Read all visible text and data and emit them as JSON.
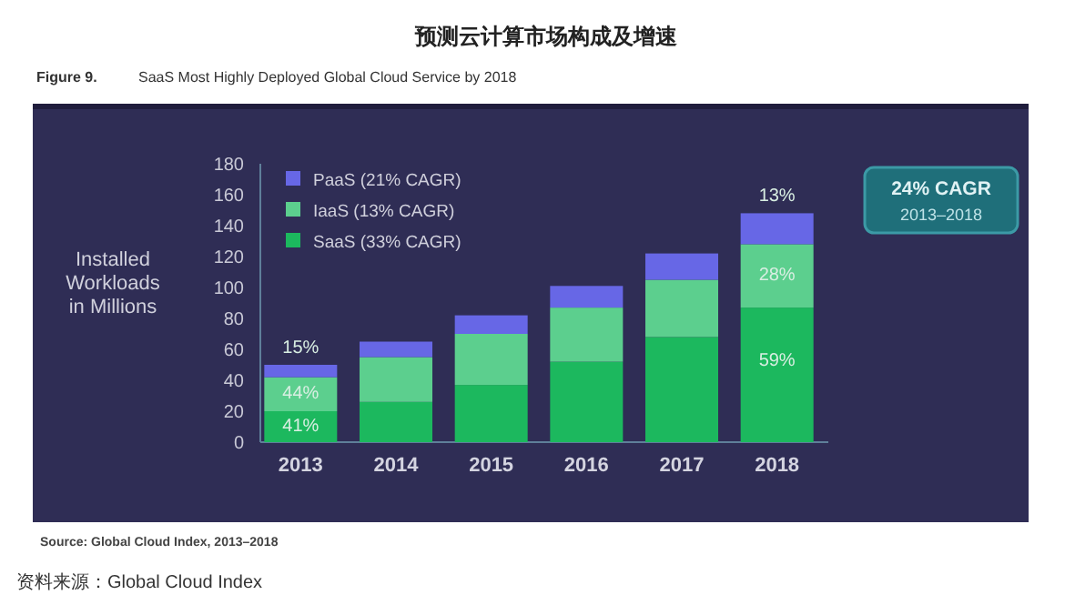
{
  "chart_data": {
    "type": "bar",
    "title": "预测云计算市场构成及增速",
    "subtitle": "SaaS Most Highly Deployed Global Cloud Service by 2018",
    "ylabel": "Installed Workloads in Millions",
    "categories": [
      "2013",
      "2014",
      "2015",
      "2016",
      "2017",
      "2018"
    ],
    "stacked": true,
    "series": [
      {
        "name": "SaaS (33% CAGR)",
        "color": "#1cb85e",
        "values": [
          20,
          26,
          37,
          52,
          68,
          87
        ]
      },
      {
        "name": "IaaS (13% CAGR)",
        "color": "#5ccf8e",
        "values": [
          22,
          29,
          33,
          35,
          37,
          41
        ]
      },
      {
        "name": "PaaS (21% CAGR)",
        "color": "#6767e6",
        "values": [
          8,
          10,
          12,
          14,
          17,
          20
        ]
      }
    ],
    "ylim": [
      0,
      180
    ],
    "yticks": [
      0,
      20,
      40,
      60,
      80,
      100,
      120,
      140,
      160,
      180
    ],
    "grid": false,
    "legend": "top left",
    "annotations": [
      "Figure 9.",
      "24% CAGR",
      "2013–2018",
      "Source: Global Cloud Index, 2013–2018",
      "资料来源：Global Cloud Index",
      "59%",
      {
        "text": "41%",
        "x": "2013",
        "y": 20
      },
      {
        "text": "44%",
        "x": "2013",
        "y": 42
      },
      {
        "text": "15%",
        "x": "2013",
        "y": 50
      },
      {
        "text": "28%",
        "x": "2018",
        "y": 128
      },
      {
        "text": "13%",
        "x": "2018",
        "y": 148
      }
    ]
  }
}
